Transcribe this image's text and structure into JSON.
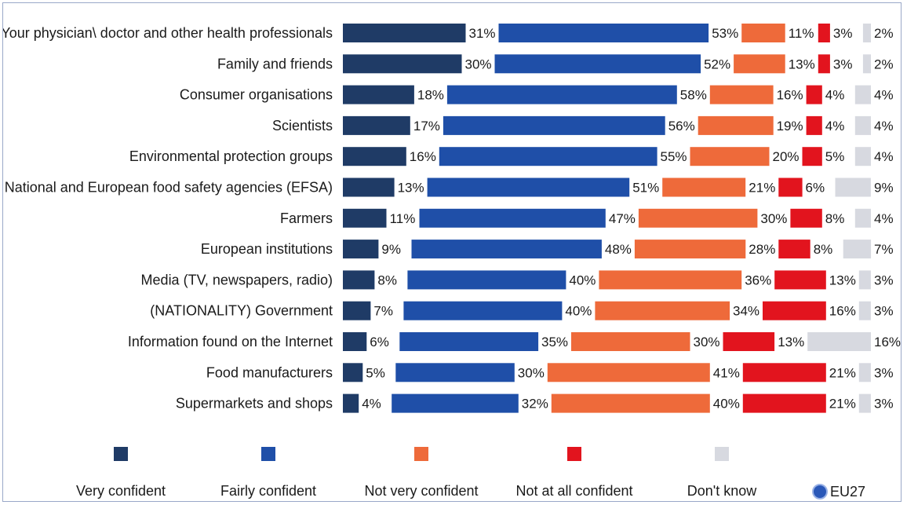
{
  "chart_data": {
    "type": "bar",
    "stacked": true,
    "orientation": "horizontal",
    "categories": [
      "Your physician\\ doctor and other health professionals",
      "Family and friends",
      "Consumer organisations",
      "Scientists",
      "Environmental protection groups",
      "National and European food safety agencies (EFSA)",
      "Farmers",
      "European institutions",
      "Media (TV, newspapers, radio)",
      "(NATIONALITY) Government",
      "Information found on the Internet",
      "Food manufacturers",
      "Supermarkets and shops"
    ],
    "series": [
      {
        "name": "Very confident",
        "color": "#1f3b66",
        "values": [
          31,
          30,
          18,
          17,
          16,
          13,
          11,
          9,
          8,
          7,
          6,
          5,
          4
        ]
      },
      {
        "name": "Fairly confident",
        "color": "#1f4fa8",
        "values": [
          53,
          52,
          58,
          56,
          55,
          51,
          47,
          48,
          40,
          40,
          35,
          30,
          32
        ]
      },
      {
        "name": "Not very confident",
        "color": "#ee6a3a",
        "values": [
          11,
          13,
          16,
          19,
          20,
          21,
          30,
          28,
          36,
          34,
          30,
          41,
          40
        ]
      },
      {
        "name": "Not at all confident",
        "color": "#e2141e",
        "values": [
          3,
          3,
          4,
          4,
          5,
          6,
          8,
          8,
          13,
          16,
          13,
          21,
          21
        ]
      },
      {
        "name": "Don't know",
        "color": "#d7d9e0",
        "values": [
          2,
          2,
          4,
          4,
          4,
          9,
          4,
          7,
          3,
          3,
          16,
          3,
          3
        ]
      }
    ],
    "value_suffix": "%",
    "legend_position": "bottom",
    "legend_extra": "EU27",
    "eu_marker_color": "#2a58b8",
    "grid": false
  }
}
